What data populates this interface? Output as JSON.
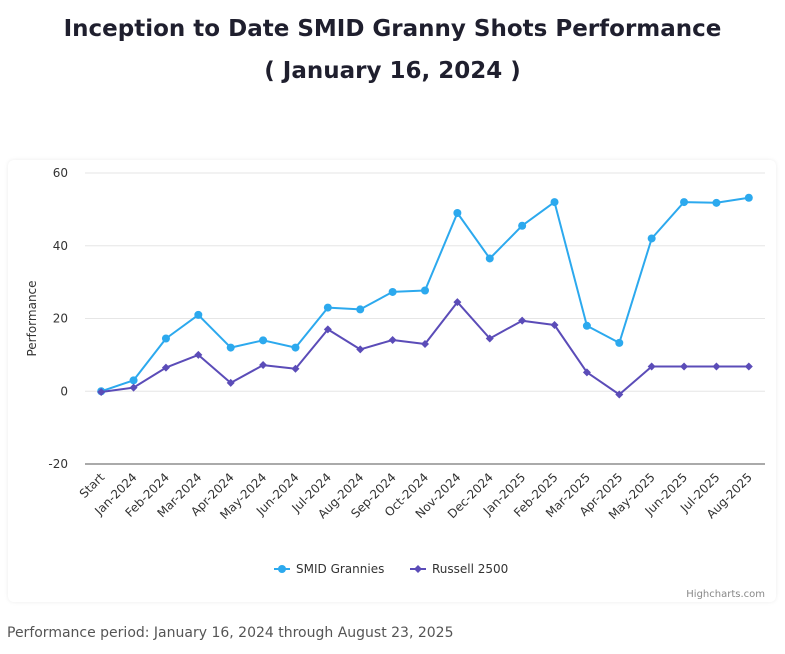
{
  "page": {
    "title_line1": "Inception to Date SMID Granny Shots Performance",
    "title_line2": "( January 16, 2024 )",
    "footer": "Performance period: January 16, 2024 through August 23, 2025",
    "credit": "Highcharts.com"
  },
  "chart_data": {
    "type": "line",
    "title": "Inception to Date SMID Granny Shots Performance ( January 16, 2024 )",
    "xlabel": "",
    "ylabel": "Performance",
    "ylim": [
      -20,
      60
    ],
    "yticks": [
      -20,
      0,
      20,
      40,
      60
    ],
    "grid": true,
    "legend_position": "bottom-center",
    "categories": [
      "Start",
      "Jan-2024",
      "Feb-2024",
      "Mar-2024",
      "Apr-2024",
      "May-2024",
      "Jun-2024",
      "Jul-2024",
      "Aug-2024",
      "Sep-2024",
      "Oct-2024",
      "Nov-2024",
      "Dec-2024",
      "Jan-2025",
      "Feb-2025",
      "Mar-2025",
      "Apr-2025",
      "May-2025",
      "Jun-2025",
      "Jul-2025",
      "Aug-2025"
    ],
    "series": [
      {
        "name": "SMID Grannies",
        "color": "#2ca9ee",
        "marker": "circle",
        "values": [
          0,
          3,
          14.5,
          21,
          12,
          14,
          12,
          23,
          22.5,
          27.3,
          27.7,
          49,
          36.5,
          45.5,
          52,
          18,
          13.3,
          42,
          52,
          51.8,
          53.2
        ]
      },
      {
        "name": "Russell 2500",
        "color": "#5b4cb8",
        "marker": "diamond",
        "values": [
          -0.2,
          1,
          6.5,
          10,
          2.3,
          7.2,
          6.2,
          17,
          11.5,
          14.1,
          13,
          24.5,
          14.5,
          19.4,
          18.2,
          5.2,
          -0.9,
          6.8,
          6.8,
          6.8,
          6.8
        ]
      }
    ]
  }
}
